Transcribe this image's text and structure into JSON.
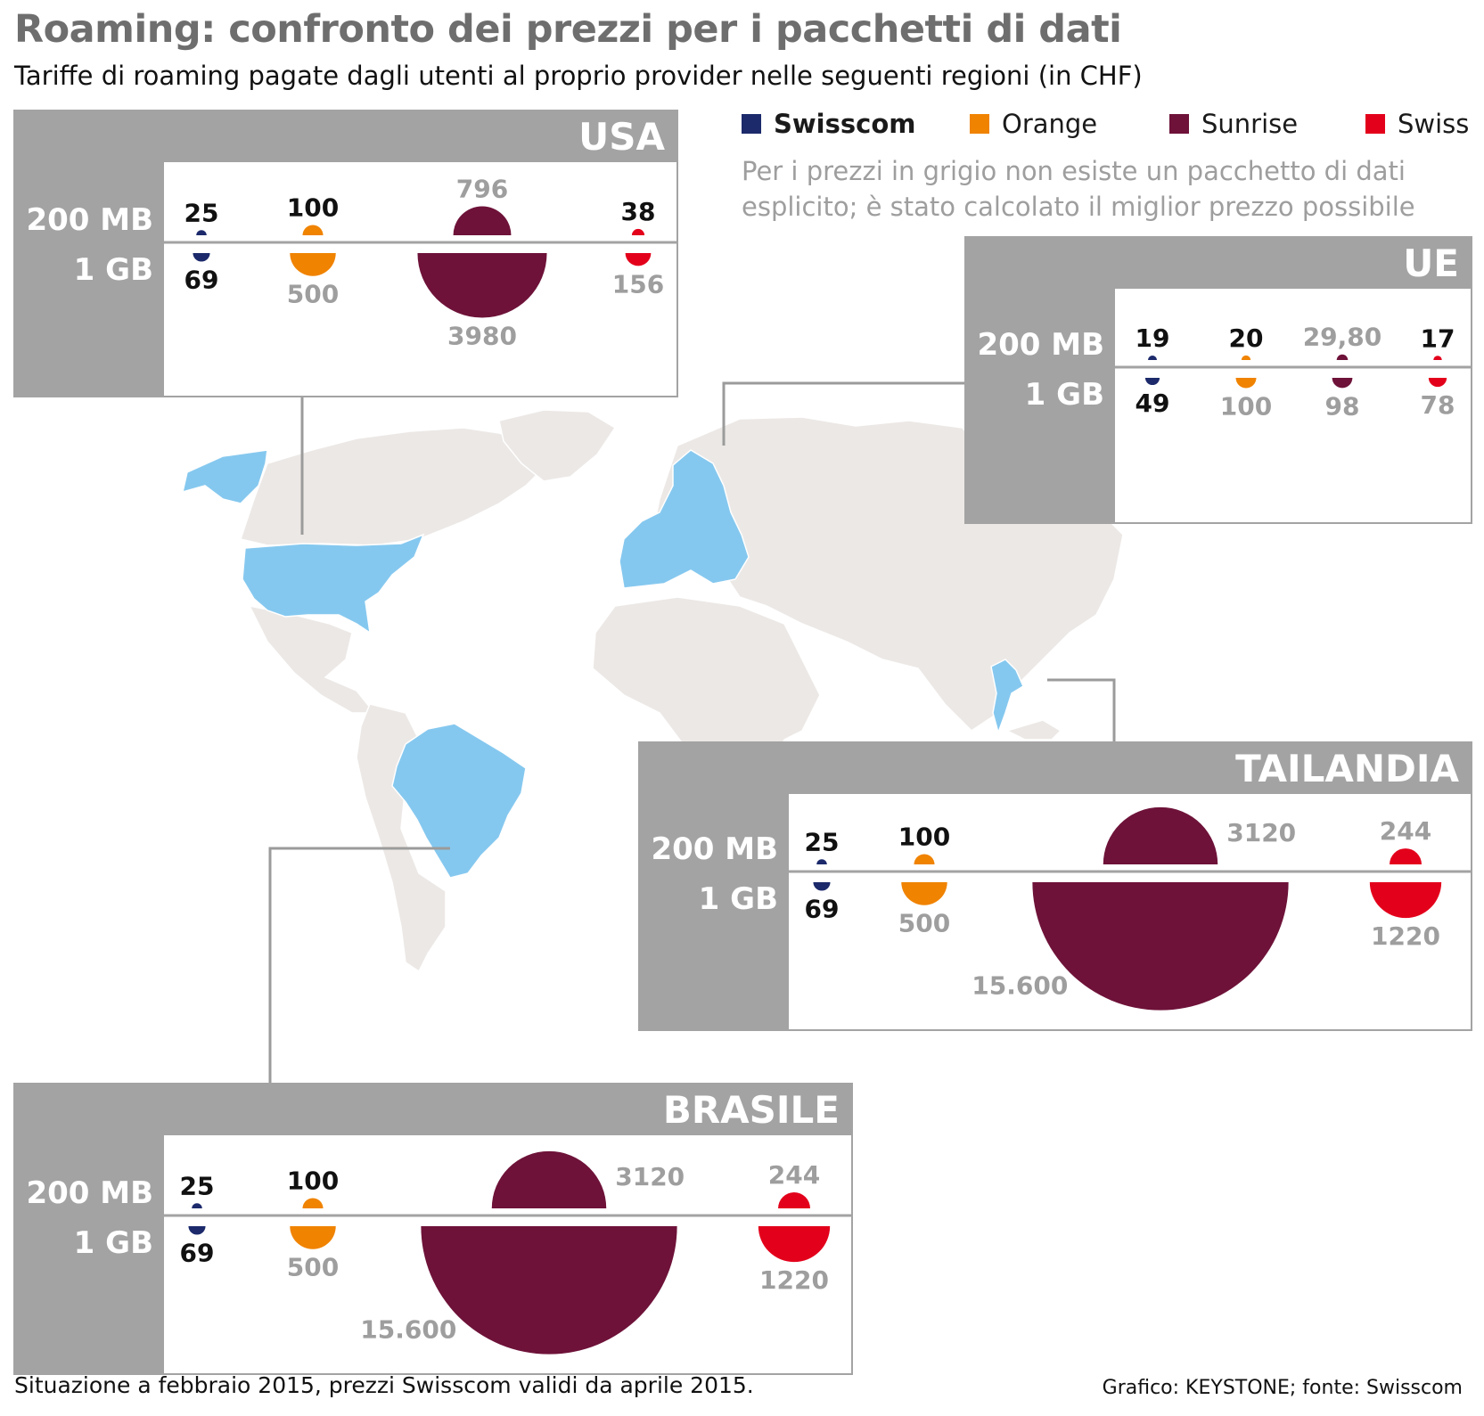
{
  "title": "Roaming: confronto dei prezzi per i pacchetti di dati",
  "subtitle": "Tariffe di roaming pagate dagli utenti al proprio provider nelle seguenti regioni (in CHF)",
  "legend": [
    {
      "name": "Swisscom",
      "color": "#1c2a6b",
      "bold": true
    },
    {
      "name": "Orange",
      "color": "#f08300",
      "bold": false
    },
    {
      "name": "Sunrise",
      "color": "#6e1239",
      "bold": false
    },
    {
      "name": "Swiss",
      "color": "#e3001b",
      "bold": false
    }
  ],
  "note": "Per i prezzi in grigio non esiste un pacchetto di dati esplicito; è stato calcolato il miglior prezzo possibile",
  "row_labels": {
    "mb200": "200 MB",
    "gb1": "1 GB"
  },
  "colors": {
    "header": "#a3a3a3",
    "gray_text": "#9e9e9e",
    "black_text": "#111111",
    "map_land": "#ece8e6",
    "map_highlight": "#85c8ef",
    "connector": "#9b9b9b"
  },
  "chart_data": [
    {
      "type": "semicircle-comparison",
      "region": "USA",
      "unit": "CHF",
      "providers": [
        "Swisscom",
        "Orange",
        "Sunrise",
        "Swiss"
      ],
      "series": [
        {
          "package": "200 MB",
          "values": [
            25,
            100,
            796,
            38
          ],
          "labels": [
            "25",
            "100",
            "796",
            "38"
          ],
          "estimated": [
            false,
            false,
            true,
            false
          ]
        },
        {
          "package": "1 GB",
          "values": [
            69,
            500,
            3980,
            156
          ],
          "labels": [
            "69",
            "500",
            "3980",
            "156"
          ],
          "estimated": [
            false,
            true,
            true,
            true
          ]
        }
      ]
    },
    {
      "type": "semicircle-comparison",
      "region": "UE",
      "unit": "CHF",
      "providers": [
        "Swisscom",
        "Orange",
        "Sunrise",
        "Swiss"
      ],
      "series": [
        {
          "package": "200 MB",
          "values": [
            19,
            20,
            29.8,
            17
          ],
          "labels": [
            "19",
            "20",
            "29,80",
            "17"
          ],
          "estimated": [
            false,
            false,
            true,
            false
          ]
        },
        {
          "package": "1 GB",
          "values": [
            49,
            100,
            98,
            78
          ],
          "labels": [
            "49",
            "100",
            "98",
            "78"
          ],
          "estimated": [
            false,
            true,
            true,
            true
          ]
        }
      ]
    },
    {
      "type": "semicircle-comparison",
      "region": "TAILANDIA",
      "unit": "CHF",
      "providers": [
        "Swisscom",
        "Orange",
        "Sunrise",
        "Swiss"
      ],
      "series": [
        {
          "package": "200 MB",
          "values": [
            25,
            100,
            3120,
            244
          ],
          "labels": [
            "25",
            "100",
            "3120",
            "244"
          ],
          "estimated": [
            false,
            false,
            true,
            true
          ]
        },
        {
          "package": "1 GB",
          "values": [
            69,
            500,
            15600,
            1220
          ],
          "labels": [
            "69",
            "500",
            "15.600",
            "1220"
          ],
          "estimated": [
            false,
            true,
            true,
            true
          ]
        }
      ]
    },
    {
      "type": "semicircle-comparison",
      "region": "BRASILE",
      "unit": "CHF",
      "providers": [
        "Swisscom",
        "Orange",
        "Sunrise",
        "Swiss"
      ],
      "series": [
        {
          "package": "200 MB",
          "values": [
            25,
            100,
            3120,
            244
          ],
          "labels": [
            "25",
            "100",
            "3120",
            "244"
          ],
          "estimated": [
            false,
            false,
            true,
            true
          ]
        },
        {
          "package": "1 GB",
          "values": [
            69,
            500,
            15600,
            1220
          ],
          "labels": [
            "69",
            "500",
            "15.600",
            "1220"
          ],
          "estimated": [
            false,
            true,
            true,
            true
          ]
        }
      ]
    }
  ],
  "footer_left": "Situazione a febbraio 2015, prezzi Swisscom validi da aprile 2015.",
  "footer_right": "Grafico: KEYSTONE; fonte: Swisscom"
}
